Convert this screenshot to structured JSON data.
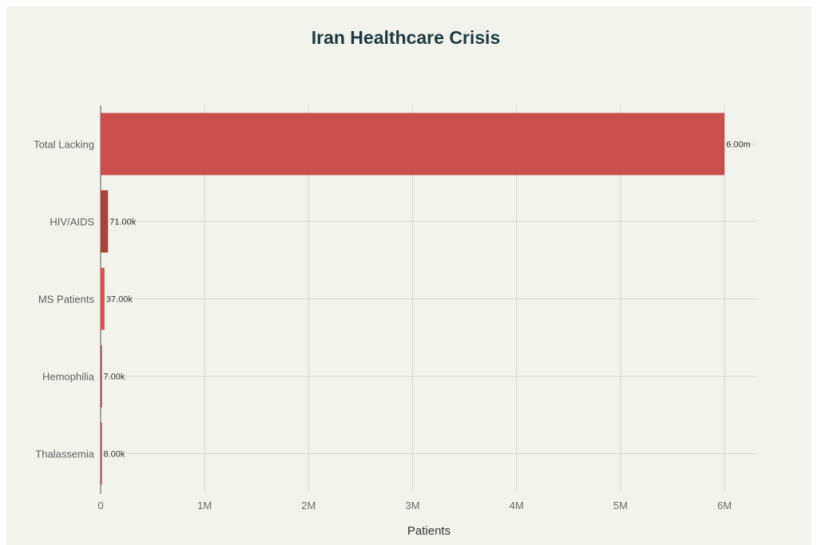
{
  "chart_data": {
    "type": "bar",
    "orientation": "horizontal",
    "title": "Iran Healthcare Crisis",
    "xlabel": "Patients",
    "ylabel": "",
    "categories": [
      "Total Lacking",
      "HIV/AIDS",
      "MS Patients",
      "Hemophilia",
      "Thalassemia"
    ],
    "values": [
      6000000,
      71000,
      37000,
      7000,
      8000
    ],
    "data_labels": [
      "6.00m",
      "71.00k",
      "37.00k",
      "7.00k",
      "8.00k"
    ],
    "colors": [
      "#c9504d",
      "#a8433b",
      "#d95452",
      "#9a3a36",
      "#a9403c"
    ],
    "xlim": [
      0,
      6300000
    ],
    "xticks": [
      0,
      1000000,
      2000000,
      3000000,
      4000000,
      5000000,
      6000000
    ],
    "xtick_labels": [
      "0",
      "1M",
      "2M",
      "3M",
      "4M",
      "5M",
      "6M"
    ],
    "grid": true,
    "legend": "none"
  }
}
